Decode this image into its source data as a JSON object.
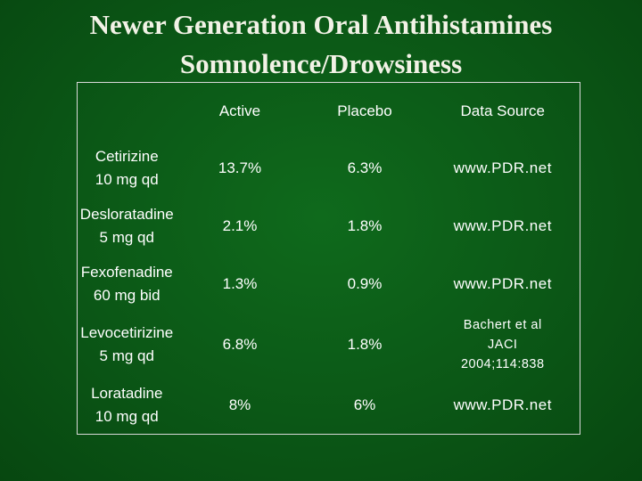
{
  "title": {
    "line1": "Newer Generation Oral Antihistamines",
    "line2": "Somnolence/Drowsiness"
  },
  "table": {
    "headers": [
      "",
      "Active",
      "Placebo",
      "Data Source"
    ],
    "rows": [
      {
        "drug": "Cetirizine",
        "dose": "10 mg qd",
        "active": "13.7%",
        "placebo": "6.3%",
        "source": [
          "www.PDR.net"
        ]
      },
      {
        "drug": "Desloratadine",
        "dose": "5 mg qd",
        "active": "2.1%",
        "placebo": "1.8%",
        "source": [
          "www.PDR.net"
        ]
      },
      {
        "drug": "Fexofenadine",
        "dose": "60 mg bid",
        "active": "1.3%",
        "placebo": "0.9%",
        "source": [
          "www.PDR.net"
        ]
      },
      {
        "drug": "Levocetirizine",
        "dose": "5 mg qd",
        "active": "6.8%",
        "placebo": "1.8%",
        "source": [
          "Bachert et al",
          "JACI",
          "2004;114:838"
        ]
      },
      {
        "drug": "Loratadine",
        "dose": "10 mg qd",
        "active": "8%",
        "placebo": "6%",
        "source": [
          "www.PDR.net"
        ]
      }
    ]
  }
}
